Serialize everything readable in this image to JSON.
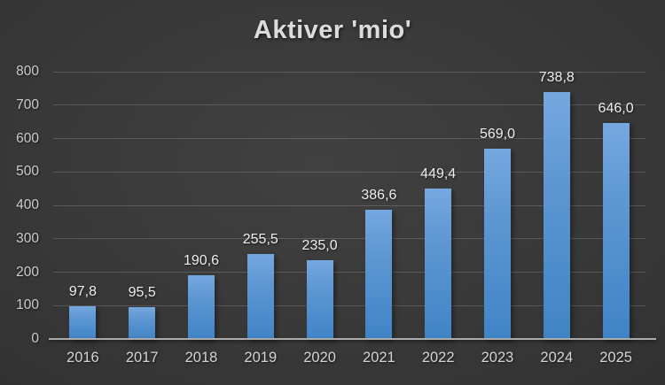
{
  "chart_data": {
    "type": "bar",
    "title": "Aktiver 'mio'",
    "categories": [
      "2016",
      "2017",
      "2018",
      "2019",
      "2020",
      "2021",
      "2022",
      "2023",
      "2024",
      "2025"
    ],
    "values": [
      97.8,
      95.5,
      190.6,
      255.5,
      235.0,
      386.6,
      449.4,
      569.0,
      738.8,
      646.0
    ],
    "value_labels": [
      "97,8",
      "95,5",
      "190,6",
      "255,5",
      "235,0",
      "386,6",
      "449,4",
      "569,0",
      "738,8",
      "646,0"
    ],
    "xlabel": "",
    "ylabel": "",
    "ylim": [
      0,
      800
    ],
    "ytick_step": 100,
    "ytick_labels": [
      "0",
      "100",
      "200",
      "300",
      "400",
      "500",
      "600",
      "700",
      "800"
    ],
    "grid": true,
    "legend": false,
    "decimal_separator": ",",
    "bar_color_top": "#76a8df",
    "bar_color_bottom": "#4084c6",
    "background_color": "#343434",
    "gridline_color": "#525252",
    "axis_line_color": "#ababab",
    "text_color": "#dcdcdc"
  }
}
